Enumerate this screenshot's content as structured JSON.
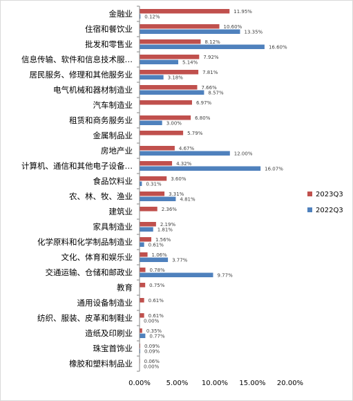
{
  "chart_data": {
    "type": "bar",
    "orientation": "horizontal",
    "categories": [
      "金融业",
      "住宿和餐饮业",
      "批发和零售业",
      "信息传输、软件和信息技术服…",
      "居民服务、修理和其他服务业",
      "电气机械和器材制造业",
      "汽车制造业",
      "租赁和商务服务业",
      "金属制品业",
      "房地产业",
      "计算机、通信和其他电子设备…",
      "食品饮料业",
      "农、林、牧、渔业",
      "建筑业",
      "家具制造业",
      "化学原料和化学制品制造业",
      "文化、体育和娱乐业",
      "交通运输、仓储和邮政业",
      "教育",
      "通用设备制造业",
      "纺织、服装、皮革和制鞋业",
      "造纸及印刷业",
      "珠宝首饰业",
      "橡胶和塑料制品业"
    ],
    "series": [
      {
        "name": "2023Q3",
        "color": "#c0504d",
        "values": [
          11.95,
          10.6,
          8.12,
          7.92,
          7.81,
          7.66,
          6.97,
          6.8,
          5.79,
          4.67,
          4.32,
          3.6,
          3.31,
          2.36,
          2.19,
          1.56,
          1.06,
          0.78,
          0.75,
          0.61,
          0.61,
          0.35,
          0.09,
          0.06
        ],
        "labels": [
          "11.95%",
          "10.60%",
          "8.12%",
          "7.92%",
          "7.81%",
          "7.66%",
          "6.97%",
          "6.80%",
          "5.79%",
          "4.67%",
          "4.32%",
          "3.60%",
          "3.31%",
          "2.36%",
          "2.19%",
          "1.56%",
          "1.06%",
          "0.78%",
          "0.75%",
          "0.61%",
          "0.61%",
          "0.35%",
          "0.09%",
          "0.06%"
        ]
      },
      {
        "name": "2022Q3",
        "color": "#4f81bd",
        "values": [
          0.12,
          13.35,
          16.6,
          5.14,
          3.18,
          8.57,
          null,
          3.0,
          null,
          12.0,
          16.07,
          0.31,
          4.81,
          null,
          1.81,
          0.61,
          3.77,
          9.77,
          null,
          null,
          0.0,
          0.77,
          0.09,
          0.0
        ],
        "labels": [
          "0.12%",
          "13.35%",
          "16.60%",
          "5.14%",
          "3.18%",
          "8.57%",
          null,
          "3.00%",
          null,
          "12.00%",
          "16.07%",
          "0.31%",
          "4.81%",
          null,
          "1.81%",
          "0.61%",
          "3.77%",
          "9.77%",
          null,
          null,
          "0.00%",
          "0.77%",
          "0.09%",
          "0.00%"
        ]
      }
    ],
    "xlim": [
      0,
      20
    ],
    "xticks": [
      0,
      5,
      10,
      15,
      20
    ],
    "xtick_labels": [
      "0.00%",
      "5.00%",
      "10.00%",
      "15.00%",
      "20.00%"
    ],
    "grid": false,
    "legend_position": "right"
  }
}
